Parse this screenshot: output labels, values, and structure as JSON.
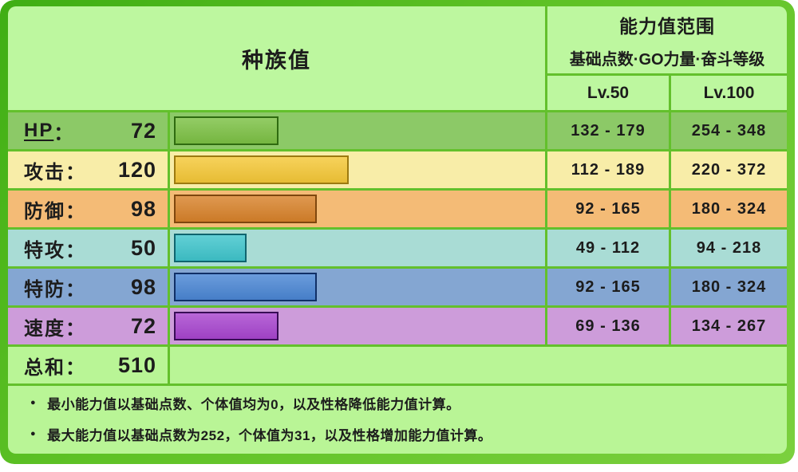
{
  "punct": {
    "colon": "："
  },
  "header": {
    "base_stats_title": "种族值",
    "range_title": "能力值范围",
    "range_subtitle": "基础点数·GO力量·奋斗等级",
    "lv50_label": "Lv.50",
    "lv100_label": "Lv.100"
  },
  "stats": [
    {
      "label": "HP",
      "value": 72,
      "lv50": "132 - 179",
      "lv100": "254 - 348",
      "row_bg": "#8cc967",
      "bar_fill": "#7cc144",
      "bar_border": "#2f6b10",
      "underline": true
    },
    {
      "label": "攻击",
      "value": 120,
      "lv50": "112 - 189",
      "lv100": "220 - 372",
      "row_bg": "#f8eda8",
      "bar_fill": "#f5c837",
      "bar_border": "#9c7a10",
      "underline": false
    },
    {
      "label": "防御",
      "value": 98,
      "lv50": "92 - 165",
      "lv100": "180 - 324",
      "row_bg": "#f4bb76",
      "bar_fill": "#d8822a",
      "bar_border": "#7f470e",
      "underline": false
    },
    {
      "label": "特攻",
      "value": 50,
      "lv50": "49 - 112",
      "lv100": "94 - 218",
      "row_bg": "#a9dcd5",
      "bar_fill": "#3fc5cc",
      "bar_border": "#10656f",
      "underline": false
    },
    {
      "label": "特防",
      "value": 98,
      "lv50": "92 - 165",
      "lv100": "180 - 324",
      "row_bg": "#84a6d2",
      "bar_fill": "#4a86d4",
      "bar_border": "#102f66",
      "underline": false
    },
    {
      "label": "速度",
      "value": 72,
      "lv50": "69 - 136",
      "lv100": "134 - 267",
      "row_bg": "#cd9cda",
      "bar_fill": "#a845cf",
      "bar_border": "#380d56",
      "underline": false
    }
  ],
  "total": {
    "label": "总和",
    "value": 510
  },
  "notes": [
    "最小能力值以基础点数、个体值均为0，以及性格降低能力值计算。",
    "最大能力值以基础点数为252，个体值为31，以及性格增加能力值计算。"
  ],
  "colors": {
    "frame_green_dark": "#3fae14",
    "frame_green_light": "#7bd03e",
    "grid_line_green": "#63c02c",
    "header_bg": "#bdf79f",
    "footer_bg": "#b9f596",
    "text": "#1c1c1c"
  },
  "chart_data": {
    "type": "bar",
    "title": "种族值",
    "categories": [
      "HP",
      "攻击",
      "防御",
      "特攻",
      "特防",
      "速度"
    ],
    "values": [
      72,
      120,
      98,
      50,
      98,
      72
    ],
    "total": 510,
    "value_max": 255,
    "bar_colors": [
      "#7cc144",
      "#f5c837",
      "#d8822a",
      "#3fc5cc",
      "#4a86d4",
      "#a845cf"
    ],
    "series": [
      {
        "name": "Lv.50 能力值范围",
        "ranges": [
          [
            132,
            179
          ],
          [
            112,
            189
          ],
          [
            92,
            165
          ],
          [
            49,
            112
          ],
          [
            92,
            165
          ],
          [
            69,
            136
          ]
        ]
      },
      {
        "name": "Lv.100 能力值范围",
        "ranges": [
          [
            254,
            348
          ],
          [
            220,
            372
          ],
          [
            180,
            324
          ],
          [
            94,
            218
          ],
          [
            180,
            324
          ],
          [
            134,
            267
          ]
        ]
      }
    ],
    "legend_position": "none",
    "grid": false,
    "orientation": "horizontal"
  }
}
